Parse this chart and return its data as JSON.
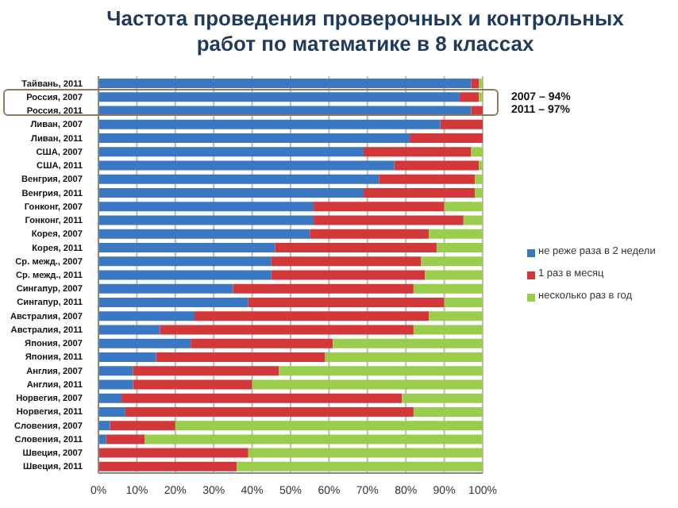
{
  "chart_data": {
    "type": "bar",
    "orientation": "horizontal",
    "stacked": true,
    "title": "Частота проведения проверочных и контрольных работ по математике в 8 классах",
    "categories": [
      "Тайвань, 2011",
      "Россия, 2007",
      "Россия, 2011",
      "Ливан, 2007",
      "Ливан, 2011",
      "США, 2007",
      "США, 2011",
      "Венгрия, 2007",
      "Венгрия, 2011",
      "Гонконг, 2007",
      "Гонконг, 2011",
      "Корея, 2007",
      "Корея, 2011",
      "Ср. межд., 2007",
      "Ср. межд., 2011",
      "Сингапур, 2007",
      "Сингапур, 2011",
      "Австралия, 2007",
      "Австралия, 2011",
      "Япония, 2007",
      "Япония, 2011",
      "Англия, 2007",
      "Англия, 2011",
      "Норвегия, 2007",
      "Норвегия, 2011",
      "Словения, 2007",
      "Словения, 2011",
      "Швеция, 2007",
      "Швеция, 2011"
    ],
    "series": [
      {
        "name": "не реже раза в 2 недели",
        "color": "#3a78c4",
        "values": [
          97,
          94,
          97,
          89,
          81,
          69,
          77,
          73,
          69,
          56,
          56,
          55,
          46,
          45,
          45,
          35,
          39,
          25,
          16,
          24,
          15,
          9,
          9,
          6,
          7,
          3,
          2,
          0,
          0
        ]
      },
      {
        "name": "1 раз в месяц",
        "color": "#d2373a",
        "values": [
          2,
          5,
          3,
          11,
          19,
          28,
          22,
          25,
          29,
          34,
          39,
          31,
          42,
          39,
          40,
          47,
          51,
          61,
          66,
          37,
          44,
          38,
          31,
          73,
          75,
          17,
          10,
          39,
          36
        ]
      },
      {
        "name": "несколько раз в год",
        "color": "#9acd4c",
        "values": [
          1,
          1,
          0,
          0,
          0,
          3,
          1,
          2,
          2,
          10,
          5,
          14,
          12,
          16,
          15,
          18,
          10,
          14,
          18,
          39,
          41,
          53,
          60,
          21,
          18,
          80,
          88,
          61,
          64
        ]
      }
    ],
    "xlim": [
      0,
      100
    ],
    "xticks": [
      {
        "value": 0,
        "label": "0%"
      },
      {
        "value": 10,
        "label": "10%"
      },
      {
        "value": 20,
        "label": "20%"
      },
      {
        "value": 30,
        "label": "30%"
      },
      {
        "value": 40,
        "label": "40%"
      },
      {
        "value": 50,
        "label": "50%"
      },
      {
        "value": 60,
        "label": "60%"
      },
      {
        "value": 70,
        "label": "70%"
      },
      {
        "value": 80,
        "label": "80%"
      },
      {
        "value": 90,
        "label": "90%"
      },
      {
        "value": 100,
        "label": "100%"
      }
    ],
    "annotations": [
      "2007 – 94%",
      "2011 – 97%"
    ],
    "grid": "x",
    "legend": "right"
  }
}
